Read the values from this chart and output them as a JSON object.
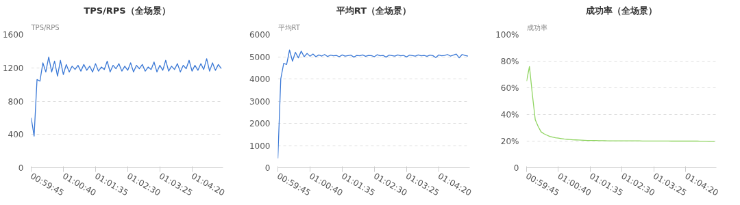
{
  "chart_data": [
    {
      "type": "line",
      "title": "TPS/RPS（全场景）",
      "ylabel": "TPS/RPS",
      "grid": "y",
      "marker": "none",
      "line_style": "solid",
      "xlim": [
        0.99583,
        1.08694
      ],
      "ylim": [
        0,
        1600
      ],
      "yticks": [
        0,
        400,
        800,
        1200,
        1600
      ],
      "xticks": [
        {
          "value": 0.99583,
          "label": "00:59:45"
        },
        {
          "value": 1.01111,
          "label": "01:00:40"
        },
        {
          "value": 1.02639,
          "label": "01:01:35"
        },
        {
          "value": 1.04167,
          "label": "01:02:30"
        },
        {
          "value": 1.05694,
          "label": "01:03:25"
        },
        {
          "value": 1.07222,
          "label": "01:04:20"
        }
      ],
      "x": [
        0.99583,
        0.99722,
        0.99861,
        1.0,
        1.00139,
        1.00278,
        1.00417,
        1.00556,
        1.00694,
        1.00833,
        1.00972,
        1.01111,
        1.0125,
        1.01389,
        1.01528,
        1.01667,
        1.01806,
        1.01944,
        1.02083,
        1.02222,
        1.02361,
        1.025,
        1.02639,
        1.02778,
        1.02917,
        1.03056,
        1.03194,
        1.03333,
        1.03472,
        1.03611,
        1.0375,
        1.03889,
        1.04028,
        1.04167,
        1.04306,
        1.04444,
        1.04583,
        1.04722,
        1.04861,
        1.05,
        1.05139,
        1.05278,
        1.05417,
        1.05556,
        1.05694,
        1.05833,
        1.05972,
        1.06111,
        1.0625,
        1.06389,
        1.06528,
        1.06667,
        1.06806,
        1.06944,
        1.07083,
        1.07222,
        1.07361,
        1.075,
        1.07639,
        1.07778,
        1.07917,
        1.08056,
        1.08194,
        1.08333,
        1.08472,
        1.08611
      ],
      "series": [
        {
          "color": "#3a78d6",
          "values": [
            600,
            380,
            1060,
            1040,
            1260,
            1150,
            1330,
            1150,
            1280,
            1100,
            1290,
            1120,
            1240,
            1150,
            1220,
            1180,
            1230,
            1160,
            1240,
            1170,
            1220,
            1150,
            1250,
            1160,
            1210,
            1180,
            1280,
            1150,
            1230,
            1190,
            1250,
            1160,
            1220,
            1170,
            1260,
            1150,
            1230,
            1190,
            1240,
            1160,
            1210,
            1180,
            1270,
            1150,
            1230,
            1170,
            1290,
            1160,
            1220,
            1180,
            1250,
            1150,
            1230,
            1190,
            1290,
            1160,
            1230,
            1170,
            1250,
            1180,
            1310,
            1160,
            1260,
            1170,
            1240,
            1190
          ]
        }
      ]
    },
    {
      "type": "line",
      "title": "平均RT（全场景）",
      "ylabel": "平均RT",
      "grid": "y",
      "marker": "none",
      "line_style": "solid",
      "xlim": [
        0.99583,
        1.08694
      ],
      "ylim": [
        0,
        6000
      ],
      "yticks": [
        0,
        1000,
        2000,
        3000,
        4000,
        5000,
        6000
      ],
      "xticks": [
        {
          "value": 0.99583,
          "label": "00:59:45"
        },
        {
          "value": 1.01111,
          "label": "01:00:40"
        },
        {
          "value": 1.02639,
          "label": "01:01:35"
        },
        {
          "value": 1.04167,
          "label": "01:02:30"
        },
        {
          "value": 1.05694,
          "label": "01:03:25"
        },
        {
          "value": 1.07222,
          "label": "01:04:20"
        }
      ],
      "x": [
        0.99583,
        0.99722,
        0.99861,
        1.0,
        1.00139,
        1.00278,
        1.00417,
        1.00556,
        1.00694,
        1.00833,
        1.00972,
        1.01111,
        1.0125,
        1.01389,
        1.01528,
        1.01667,
        1.01806,
        1.01944,
        1.02083,
        1.02222,
        1.02361,
        1.025,
        1.02639,
        1.02778,
        1.02917,
        1.03056,
        1.03194,
        1.03333,
        1.03472,
        1.03611,
        1.0375,
        1.03889,
        1.04028,
        1.04167,
        1.04306,
        1.04444,
        1.04583,
        1.04722,
        1.04861,
        1.05,
        1.05139,
        1.05278,
        1.05417,
        1.05556,
        1.05694,
        1.05833,
        1.05972,
        1.06111,
        1.0625,
        1.06389,
        1.06528,
        1.06667,
        1.06806,
        1.06944,
        1.07083,
        1.07222,
        1.07361,
        1.075,
        1.07639,
        1.07778,
        1.07917,
        1.08056,
        1.08194,
        1.08333,
        1.08472,
        1.08611
      ],
      "series": [
        {
          "color": "#3a78d6",
          "values": [
            420,
            4000,
            4700,
            4650,
            5300,
            4800,
            5200,
            4950,
            5250,
            5000,
            5150,
            5020,
            5120,
            5000,
            5080,
            5030,
            5100,
            5010,
            5070,
            5040,
            5060,
            5000,
            5080,
            5030,
            5050,
            5070,
            4980,
            5060,
            5040,
            5080,
            5020,
            5060,
            5050,
            5000,
            5090,
            5040,
            5060,
            4980,
            5070,
            5050,
            5030,
            5080,
            5040,
            5060,
            4990,
            5070,
            5050,
            5030,
            5080,
            5040,
            5060,
            5020,
            5070,
            5050,
            4960,
            5080,
            5040,
            5060,
            5100,
            5030,
            5070,
            5120,
            4950,
            5100,
            5060,
            5030
          ]
        }
      ]
    },
    {
      "type": "line",
      "title": "成功率（全场景）",
      "ylabel": "成功率",
      "grid": "y",
      "marker": "none",
      "line_style": "solid",
      "xlim": [
        0.99583,
        1.08694
      ],
      "ylim": [
        0,
        100
      ],
      "yticks": [
        0,
        {
          "value": 20,
          "label": "20%"
        },
        {
          "value": 40,
          "label": "40%"
        },
        {
          "value": 60,
          "label": "60%"
        },
        {
          "value": 80,
          "label": "80%"
        },
        {
          "value": 100,
          "label": "100%"
        }
      ],
      "xticks": [
        {
          "value": 0.99583,
          "label": "00:59:45"
        },
        {
          "value": 1.01111,
          "label": "01:00:40"
        },
        {
          "value": 1.02639,
          "label": "01:01:35"
        },
        {
          "value": 1.04167,
          "label": "01:02:30"
        },
        {
          "value": 1.05694,
          "label": "01:03:25"
        },
        {
          "value": 1.07222,
          "label": "01:04:20"
        }
      ],
      "x": [
        0.99583,
        0.99722,
        0.99861,
        1.0,
        1.00139,
        1.00278,
        1.00417,
        1.00556,
        1.00694,
        1.00833,
        1.00972,
        1.01111,
        1.0125,
        1.01389,
        1.01528,
        1.01667,
        1.01806,
        1.01944,
        1.02083,
        1.02222,
        1.02361,
        1.025,
        1.02639,
        1.02778,
        1.02917,
        1.03056,
        1.03194,
        1.03333,
        1.03472,
        1.03611,
        1.0375,
        1.03889,
        1.04028,
        1.04167,
        1.04306,
        1.04444,
        1.04583,
        1.04722,
        1.04861,
        1.05,
        1.05139,
        1.05278,
        1.05417,
        1.05556,
        1.05694,
        1.05833,
        1.05972,
        1.06111,
        1.0625,
        1.06389,
        1.06528,
        1.06667,
        1.06806,
        1.06944,
        1.07083,
        1.07222,
        1.07361,
        1.075,
        1.07639,
        1.07778,
        1.07917,
        1.08056,
        1.08194,
        1.08333,
        1.08472,
        1.08611
      ],
      "series": [
        {
          "color": "#8fd460",
          "values": [
            65,
            76,
            55,
            36,
            31,
            27,
            25.5,
            24.5,
            23.5,
            23,
            22.5,
            22.2,
            21.9,
            21.6,
            21.4,
            21.2,
            21,
            20.9,
            20.8,
            20.7,
            20.6,
            20.5,
            20.5,
            20.4,
            20.4,
            20.3,
            20.3,
            20.3,
            20.2,
            20.2,
            20.2,
            20.2,
            20.2,
            20.2,
            20.2,
            20.2,
            20.2,
            20.2,
            20.2,
            20.2,
            20.1,
            20.1,
            20.1,
            20.1,
            20.1,
            20.1,
            20.1,
            20.1,
            20.1,
            20.1,
            20.0,
            20.0,
            20.0,
            20.0,
            20.0,
            20.0,
            20.0,
            20.0,
            20.0,
            20.0,
            19.9,
            19.9,
            19.9,
            19.8,
            19.8,
            19.8
          ]
        }
      ]
    }
  ]
}
